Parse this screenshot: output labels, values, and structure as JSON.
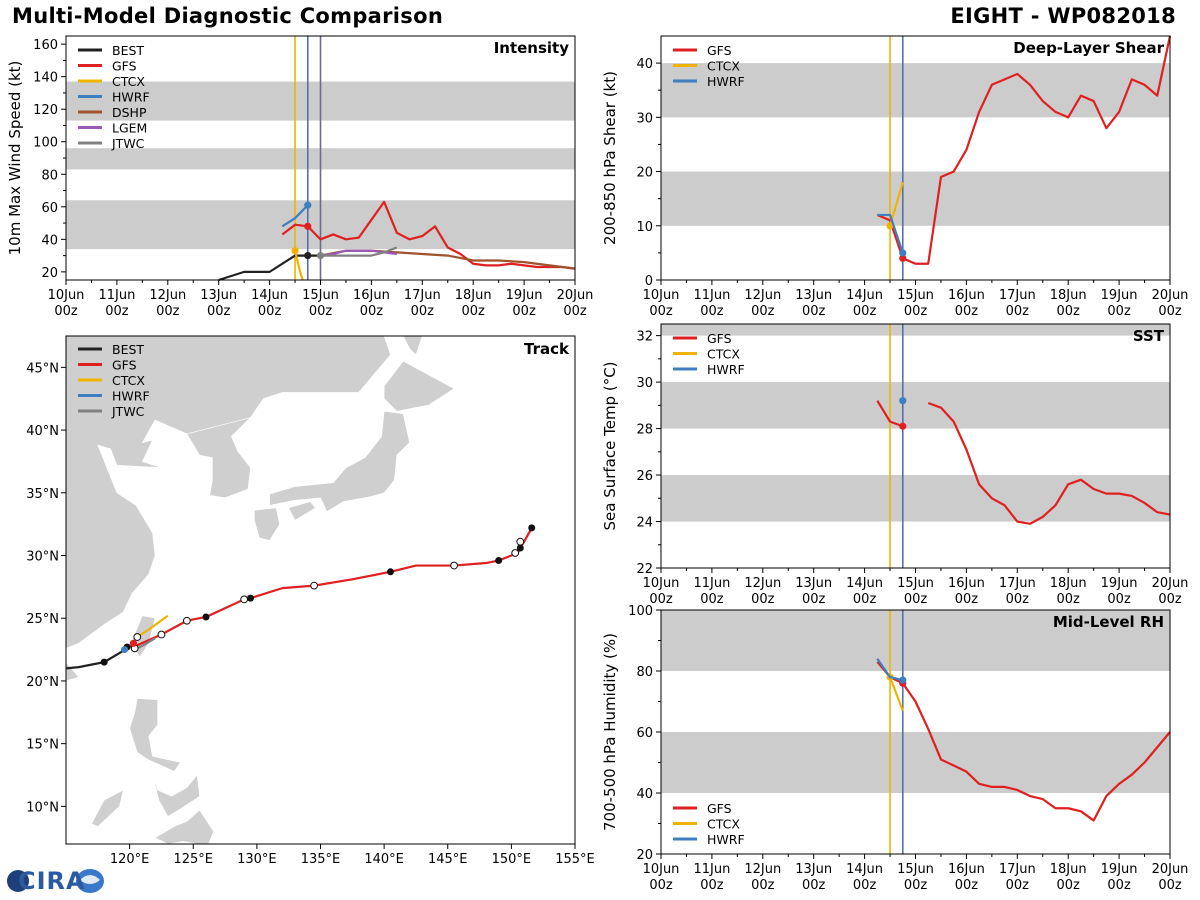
{
  "header": {
    "title": "Multi-Model Diagnostic Comparison",
    "storm": "EIGHT - WP082018"
  },
  "logo": {
    "text": "CIRA"
  },
  "colors": {
    "BEST": "#222222",
    "GFS": "#e02020",
    "CTCX": "#f0b400",
    "HWRF": "#3d7fbf",
    "DSHP": "#a0522d",
    "LGEM": "#9b59b6",
    "JTWC": "#808080",
    "band": "#cccccc",
    "vline_ctcx": "#f0b400",
    "vline_hwrf": "#5a6fa8",
    "vline_gfs": "#6c6c8c"
  },
  "time_ticks": [
    "10Jun\n00z",
    "11Jun\n00z",
    "12Jun\n00z",
    "13Jun\n00z",
    "14Jun\n00z",
    "15Jun\n00z",
    "16Jun\n00z",
    "17Jun\n00z",
    "18Jun\n00z",
    "19Jun\n00z",
    "20Jun\n00z"
  ],
  "chart_data": [
    {
      "id": "intensity",
      "type": "line",
      "title": "Intensity",
      "ylabel": "10m Max Wind Speed (kt)",
      "xlim": [
        0,
        10
      ],
      "ylim": [
        15,
        165
      ],
      "yticks": [
        20,
        40,
        60,
        80,
        100,
        120,
        140,
        160
      ],
      "bands": [
        [
          34,
          64
        ],
        [
          83,
          96
        ],
        [
          113,
          137
        ]
      ],
      "vlines": [
        {
          "x": 4.5,
          "color": "vline_ctcx"
        },
        {
          "x": 4.75,
          "color": "vline_hwrf"
        },
        {
          "x": 5.0,
          "color": "vline_gfs"
        }
      ],
      "legend": [
        "BEST",
        "GFS",
        "CTCX",
        "HWRF",
        "DSHP",
        "LGEM",
        "JTWC"
      ],
      "series": [
        {
          "name": "BEST",
          "x": [
            3.0,
            3.5,
            4.0,
            4.5,
            4.75,
            5.0
          ],
          "y": [
            15,
            20,
            20,
            30,
            30,
            30
          ],
          "dot": 4.75
        },
        {
          "name": "GFS",
          "x": [
            4.25,
            4.5,
            4.75,
            5.0,
            5.25,
            5.5,
            5.75,
            6.0,
            6.25,
            6.5,
            6.75,
            7.0,
            7.25,
            7.5,
            7.75,
            8.0,
            8.25,
            8.5,
            8.75,
            9.0,
            9.25,
            9.5,
            9.75,
            10.0
          ],
          "y": [
            43,
            49,
            48,
            40,
            43,
            40,
            41,
            52,
            63,
            44,
            40,
            42,
            48,
            35,
            31,
            25,
            24,
            24,
            25,
            24,
            23,
            23,
            23,
            22
          ],
          "dot": 4.75
        },
        {
          "name": "CTCX",
          "x": [
            4.5,
            4.6,
            4.65
          ],
          "y": [
            33,
            20,
            15
          ],
          "dot": 4.5
        },
        {
          "name": "HWRF",
          "x": [
            4.25,
            4.5,
            4.75
          ],
          "y": [
            48,
            53,
            61
          ],
          "dot": 4.75
        },
        {
          "name": "DSHP",
          "x": [
            5.0,
            5.5,
            6.0,
            6.5,
            7.0,
            7.5,
            8.0,
            8.5,
            9.0,
            9.5,
            10.0
          ],
          "y": [
            30,
            33,
            33,
            32,
            31,
            30,
            27,
            27,
            26,
            24,
            22
          ],
          "dot": null
        },
        {
          "name": "LGEM",
          "x": [
            5.0,
            5.25,
            5.5,
            6.0,
            6.25,
            6.5
          ],
          "y": [
            30,
            31,
            33,
            33,
            32,
            31
          ],
          "dot": null
        },
        {
          "name": "JTWC",
          "x": [
            5.0,
            5.5,
            6.0,
            6.25,
            6.5
          ],
          "y": [
            30,
            30,
            30,
            32,
            35
          ],
          "dot": 5.0
        }
      ]
    },
    {
      "id": "shear",
      "type": "line",
      "title": "Deep-Layer Shear",
      "ylabel": "200-850 hPa Shear (kt)",
      "xlim": [
        0,
        10
      ],
      "ylim": [
        0,
        45
      ],
      "yticks": [
        0,
        10,
        20,
        30,
        40
      ],
      "bands": [
        [
          10,
          20
        ],
        [
          30,
          40
        ]
      ],
      "vlines": [
        {
          "x": 4.5,
          "color": "vline_ctcx"
        },
        {
          "x": 4.75,
          "color": "vline_hwrf"
        }
      ],
      "legend": [
        "GFS",
        "CTCX",
        "HWRF"
      ],
      "series": [
        {
          "name": "GFS",
          "x": [
            4.25,
            4.5,
            4.75,
            5.0,
            5.25,
            5.5,
            5.75,
            6.0,
            6.25,
            6.5,
            6.75,
            7.0,
            7.25,
            7.5,
            7.75,
            8.0,
            8.25,
            8.5,
            8.75,
            9.0,
            9.25,
            9.5,
            9.75,
            10.0
          ],
          "y": [
            12,
            11,
            4,
            3,
            3,
            19,
            20,
            24,
            31,
            36,
            37,
            38,
            36,
            33,
            31,
            30,
            34,
            33,
            28,
            31,
            37,
            36,
            34,
            45
          ],
          "dot": 4.75
        },
        {
          "name": "CTCX",
          "x": [
            4.5,
            4.75
          ],
          "y": [
            10,
            18
          ],
          "dot": 4.5
        },
        {
          "name": "HWRF",
          "x": [
            4.25,
            4.5,
            4.75
          ],
          "y": [
            12,
            12,
            5
          ],
          "dot": 4.75
        }
      ]
    },
    {
      "id": "sst",
      "type": "line",
      "title": "SST",
      "ylabel": "Sea Surface Temp (°C)",
      "xlim": [
        0,
        10
      ],
      "ylim": [
        22,
        32.5
      ],
      "yticks": [
        22,
        24,
        26,
        28,
        30,
        32
      ],
      "bands": [
        [
          24,
          26
        ],
        [
          28,
          30
        ],
        [
          32,
          32.5
        ]
      ],
      "vlines": [
        {
          "x": 4.5,
          "color": "vline_ctcx"
        },
        {
          "x": 4.75,
          "color": "vline_hwrf"
        }
      ],
      "legend": [
        "GFS",
        "CTCX",
        "HWRF"
      ],
      "series": [
        {
          "name": "GFS",
          "x": [
            4.25,
            4.5,
            4.75
          ],
          "y": [
            29.2,
            28.3,
            28.1
          ],
          "dot": 4.75
        },
        {
          "name": "GFS",
          "x": [
            5.25,
            5.5,
            5.75,
            6.0,
            6.25,
            6.5,
            6.75,
            7.0,
            7.25,
            7.5,
            7.75,
            8.0,
            8.25,
            8.5,
            8.75,
            9.0,
            9.25,
            9.5,
            9.75,
            10.0
          ],
          "y": [
            29.1,
            28.9,
            28.3,
            27.1,
            25.6,
            25.0,
            24.7,
            24.0,
            23.9,
            24.2,
            24.7,
            25.6,
            25.8,
            25.4,
            25.2,
            25.2,
            25.1,
            24.8,
            24.4,
            24.3
          ],
          "dot": null
        },
        {
          "name": "HWRF",
          "x": [
            4.75
          ],
          "y": [
            29.2
          ],
          "dot": 4.75
        }
      ]
    },
    {
      "id": "rh",
      "type": "line",
      "title": "Mid-Level RH",
      "ylabel": "700-500 hPa Humidity (%)",
      "xlim": [
        0,
        10
      ],
      "ylim": [
        20,
        100
      ],
      "yticks": [
        20,
        40,
        60,
        80,
        100
      ],
      "bands": [
        [
          40,
          60
        ],
        [
          80,
          100
        ]
      ],
      "vlines": [
        {
          "x": 4.5,
          "color": "vline_ctcx"
        },
        {
          "x": 4.75,
          "color": "vline_hwrf"
        }
      ],
      "legend": [
        "GFS",
        "CTCX",
        "HWRF"
      ],
      "series": [
        {
          "name": "GFS",
          "x": [
            4.25,
            4.5,
            4.75,
            5.0,
            5.25,
            5.5,
            5.75,
            6.0,
            6.25,
            6.5,
            6.75,
            7.0,
            7.25,
            7.5,
            7.75,
            8.0,
            8.25,
            8.5,
            8.75,
            9.0,
            9.25,
            9.5,
            9.75,
            10.0
          ],
          "y": [
            83,
            78,
            76,
            70,
            61,
            51,
            49,
            47,
            43,
            42,
            42,
            41,
            39,
            38,
            35,
            35,
            34,
            31,
            39,
            43,
            46,
            50,
            55,
            60
          ],
          "dot": 4.75
        },
        {
          "name": "CTCX",
          "x": [
            4.5,
            4.75
          ],
          "y": [
            78,
            67
          ],
          "dot": 4.5
        },
        {
          "name": "HWRF",
          "x": [
            4.25,
            4.5,
            4.75
          ],
          "y": [
            84,
            78,
            77
          ],
          "dot": 4.75
        }
      ]
    },
    {
      "id": "track",
      "type": "scatter",
      "title": "Track",
      "xlim": [
        115,
        155
      ],
      "ylim": [
        7,
        47.5
      ],
      "xticks": [
        120,
        125,
        130,
        135,
        140,
        145,
        150,
        155
      ],
      "xtick_labels": [
        "120°E",
        "125°E",
        "130°E",
        "135°E",
        "140°E",
        "145°E",
        "150°E",
        "155°E"
      ],
      "yticks": [
        10,
        15,
        20,
        25,
        30,
        35,
        40,
        45
      ],
      "ytick_labels": [
        "10°N",
        "15°N",
        "20°N",
        "25°N",
        "30°N",
        "35°N",
        "40°N",
        "45°N"
      ],
      "legend": [
        "BEST",
        "GFS",
        "CTCX",
        "HWRF",
        "JTWC"
      ],
      "series": [
        {
          "name": "BEST",
          "lon": [
            115.0,
            116.0,
            118.0,
            119.5,
            120.0
          ],
          "lat": [
            21.0,
            21.1,
            21.5,
            22.4,
            22.7
          ],
          "filled": [
            118.0
          ],
          "open": []
        },
        {
          "name": "GFS",
          "lon": [
            119.8,
            120.5,
            122.5,
            124.5,
            126.0,
            129.0,
            129.5,
            132.0,
            134.5,
            137.5,
            140.5,
            142.5,
            145.5,
            148.0,
            149.0,
            150.5,
            150.7,
            151.0,
            151.6
          ],
          "lat": [
            22.7,
            22.8,
            23.7,
            24.8,
            25.1,
            26.5,
            26.6,
            27.4,
            27.6,
            28.1,
            28.7,
            29.2,
            29.2,
            29.4,
            29.6,
            30.2,
            30.6,
            31.1,
            32.2
          ],
          "filled": [
            [
              119.8,
              22.7
            ],
            [
              126.0,
              25.1
            ],
            [
              129.5,
              26.6
            ],
            [
              140.5,
              28.7
            ],
            [
              149.0,
              29.6
            ],
            [
              150.7,
              30.6
            ],
            [
              151.6,
              32.2
            ]
          ],
          "open": [
            [
              122.5,
              23.7
            ],
            [
              124.5,
              24.8
            ],
            [
              129.0,
              26.5
            ],
            [
              134.5,
              27.6
            ],
            [
              145.5,
              29.2
            ],
            [
              150.3,
              30.2
            ],
            [
              150.7,
              31.1
            ]
          ]
        },
        {
          "name": "CTCX",
          "lon": [
            120.6,
            121.5,
            123.0
          ],
          "lat": [
            23.5,
            24.1,
            25.2
          ],
          "filled": [],
          "open": [
            [
              120.6,
              23.5
            ]
          ]
        },
        {
          "name": "HWRF",
          "lon": [
            119.6,
            120.0
          ],
          "lat": [
            22.5,
            22.9
          ],
          "filled": [
            [
              119.6,
              22.5
            ]
          ],
          "open": []
        },
        {
          "name": "JTWC",
          "lon": [
            120.4,
            121.0,
            122.0
          ],
          "lat": [
            22.5,
            22.8,
            23.4
          ],
          "filled": [],
          "open": [
            [
              120.4,
              22.6
            ]
          ]
        }
      ]
    }
  ]
}
